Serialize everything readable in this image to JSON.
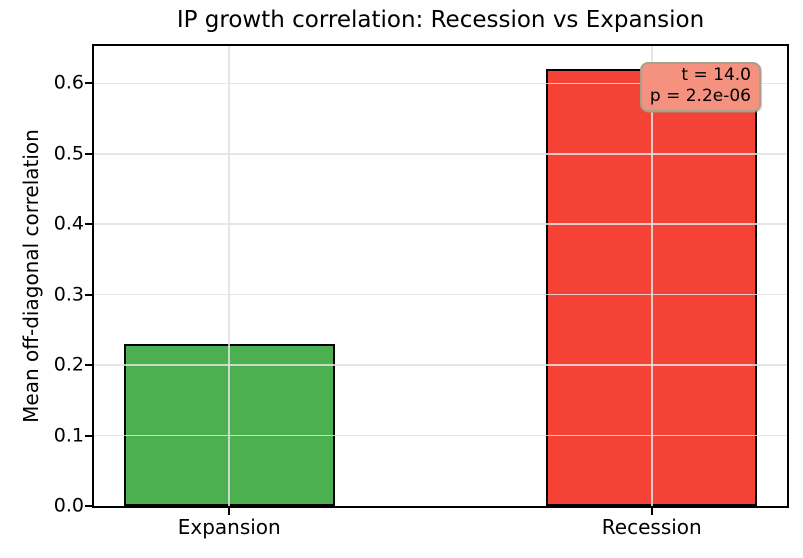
{
  "chart_data": {
    "type": "bar",
    "title": "IP growth correlation: Recession vs Expansion",
    "xlabel": "",
    "ylabel": "Mean off-diagonal correlation",
    "categories": [
      "Expansion",
      "Recession"
    ],
    "values": [
      0.23,
      0.62
    ],
    "bar_colors": [
      "#4caf50",
      "#f44336"
    ],
    "bar_edge_color": "#000000",
    "bar_width": 0.5,
    "xlim": [
      -0.32,
      1.32
    ],
    "ylim": [
      0,
      0.653
    ],
    "yticks": [
      0,
      0.1,
      0.2,
      0.3,
      0.4,
      0.5,
      0.6
    ],
    "ytick_labels": [
      "0.0",
      "0.1",
      "0.2",
      "0.3",
      "0.4",
      "0.5",
      "0.6"
    ],
    "grid": true,
    "grid_color": "#e2e2e2",
    "legend": "none",
    "annotation": {
      "lines": [
        "t = 14.0",
        "p = 2.2e-06"
      ],
      "facecolor": "#f5917f",
      "edgecolor": "#a8a08a",
      "position": "top-right"
    }
  }
}
